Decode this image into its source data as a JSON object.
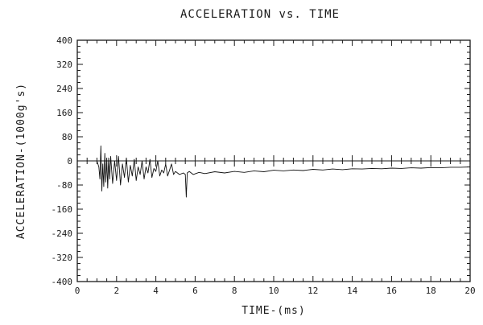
{
  "chart_data": {
    "type": "line",
    "title": "ACCELERATION vs. TIME",
    "xlabel": "TIME-(ms)",
    "ylabel": "ACCELERATION-(1000g's)",
    "xlim": [
      0,
      20
    ],
    "ylim": [
      -400,
      400
    ],
    "xticks": [
      0,
      2,
      4,
      6,
      8,
      10,
      12,
      14,
      16,
      18,
      20
    ],
    "xtick_labels": [
      "0",
      "2",
      "4",
      "6",
      "8",
      "10",
      "12",
      "14",
      "16",
      "18",
      "20"
    ],
    "yticks": [
      400,
      320,
      240,
      160,
      80,
      0,
      -80,
      -160,
      -240,
      -320,
      -400
    ],
    "ytick_labels": [
      "400",
      "320",
      "240",
      "160",
      "80",
      "0",
      "-80",
      "-160",
      "-240",
      "-320",
      "-400"
    ],
    "grid": false,
    "zero_line": true,
    "series": [
      {
        "x": [
          0.0,
          1.0,
          1.1,
          1.15,
          1.2,
          1.25,
          1.3,
          1.35,
          1.4,
          1.45,
          1.5,
          1.55,
          1.6,
          1.65,
          1.7,
          1.8,
          1.9,
          2.0,
          2.1,
          2.2,
          2.3,
          2.4,
          2.5,
          2.6,
          2.7,
          2.8,
          2.9,
          3.0,
          3.1,
          3.2,
          3.3,
          3.4,
          3.5,
          3.6,
          3.7,
          3.8,
          3.9,
          4.0,
          4.1,
          4.2,
          4.3,
          4.4,
          4.5,
          4.6,
          4.7,
          4.8,
          4.9,
          5.0,
          5.2,
          5.4,
          5.5,
          5.55,
          5.6,
          5.7,
          5.9,
          6.2,
          6.5,
          7.0,
          7.5,
          8.0,
          8.5,
          9.0,
          9.5,
          10.0,
          10.5,
          11.0,
          11.5,
          12.0,
          12.5,
          13.0,
          13.5,
          14.0,
          14.5,
          15.0,
          15.5,
          16.0,
          16.5,
          17.0,
          17.5,
          18.0,
          18.5,
          19.0,
          19.5,
          20.0
        ],
        "y": [
          0,
          0,
          -20,
          -60,
          50,
          -100,
          -10,
          -85,
          25,
          -70,
          5,
          -90,
          10,
          -60,
          15,
          -75,
          0,
          -65,
          15,
          -80,
          -10,
          -55,
          10,
          -70,
          -15,
          -50,
          5,
          -65,
          -20,
          -45,
          0,
          -60,
          -20,
          -40,
          5,
          -55,
          -25,
          -35,
          0,
          -50,
          -30,
          -40,
          -10,
          -50,
          -30,
          -10,
          -45,
          -35,
          -45,
          -40,
          -45,
          -120,
          -40,
          -35,
          -45,
          -38,
          -42,
          -36,
          -40,
          -35,
          -38,
          -33,
          -36,
          -31,
          -33,
          -30,
          -32,
          -28,
          -30,
          -27,
          -29,
          -26,
          -27,
          -25,
          -26,
          -24,
          -25,
          -23,
          -24,
          -22,
          -23,
          -21,
          -21,
          -20
        ]
      }
    ]
  }
}
